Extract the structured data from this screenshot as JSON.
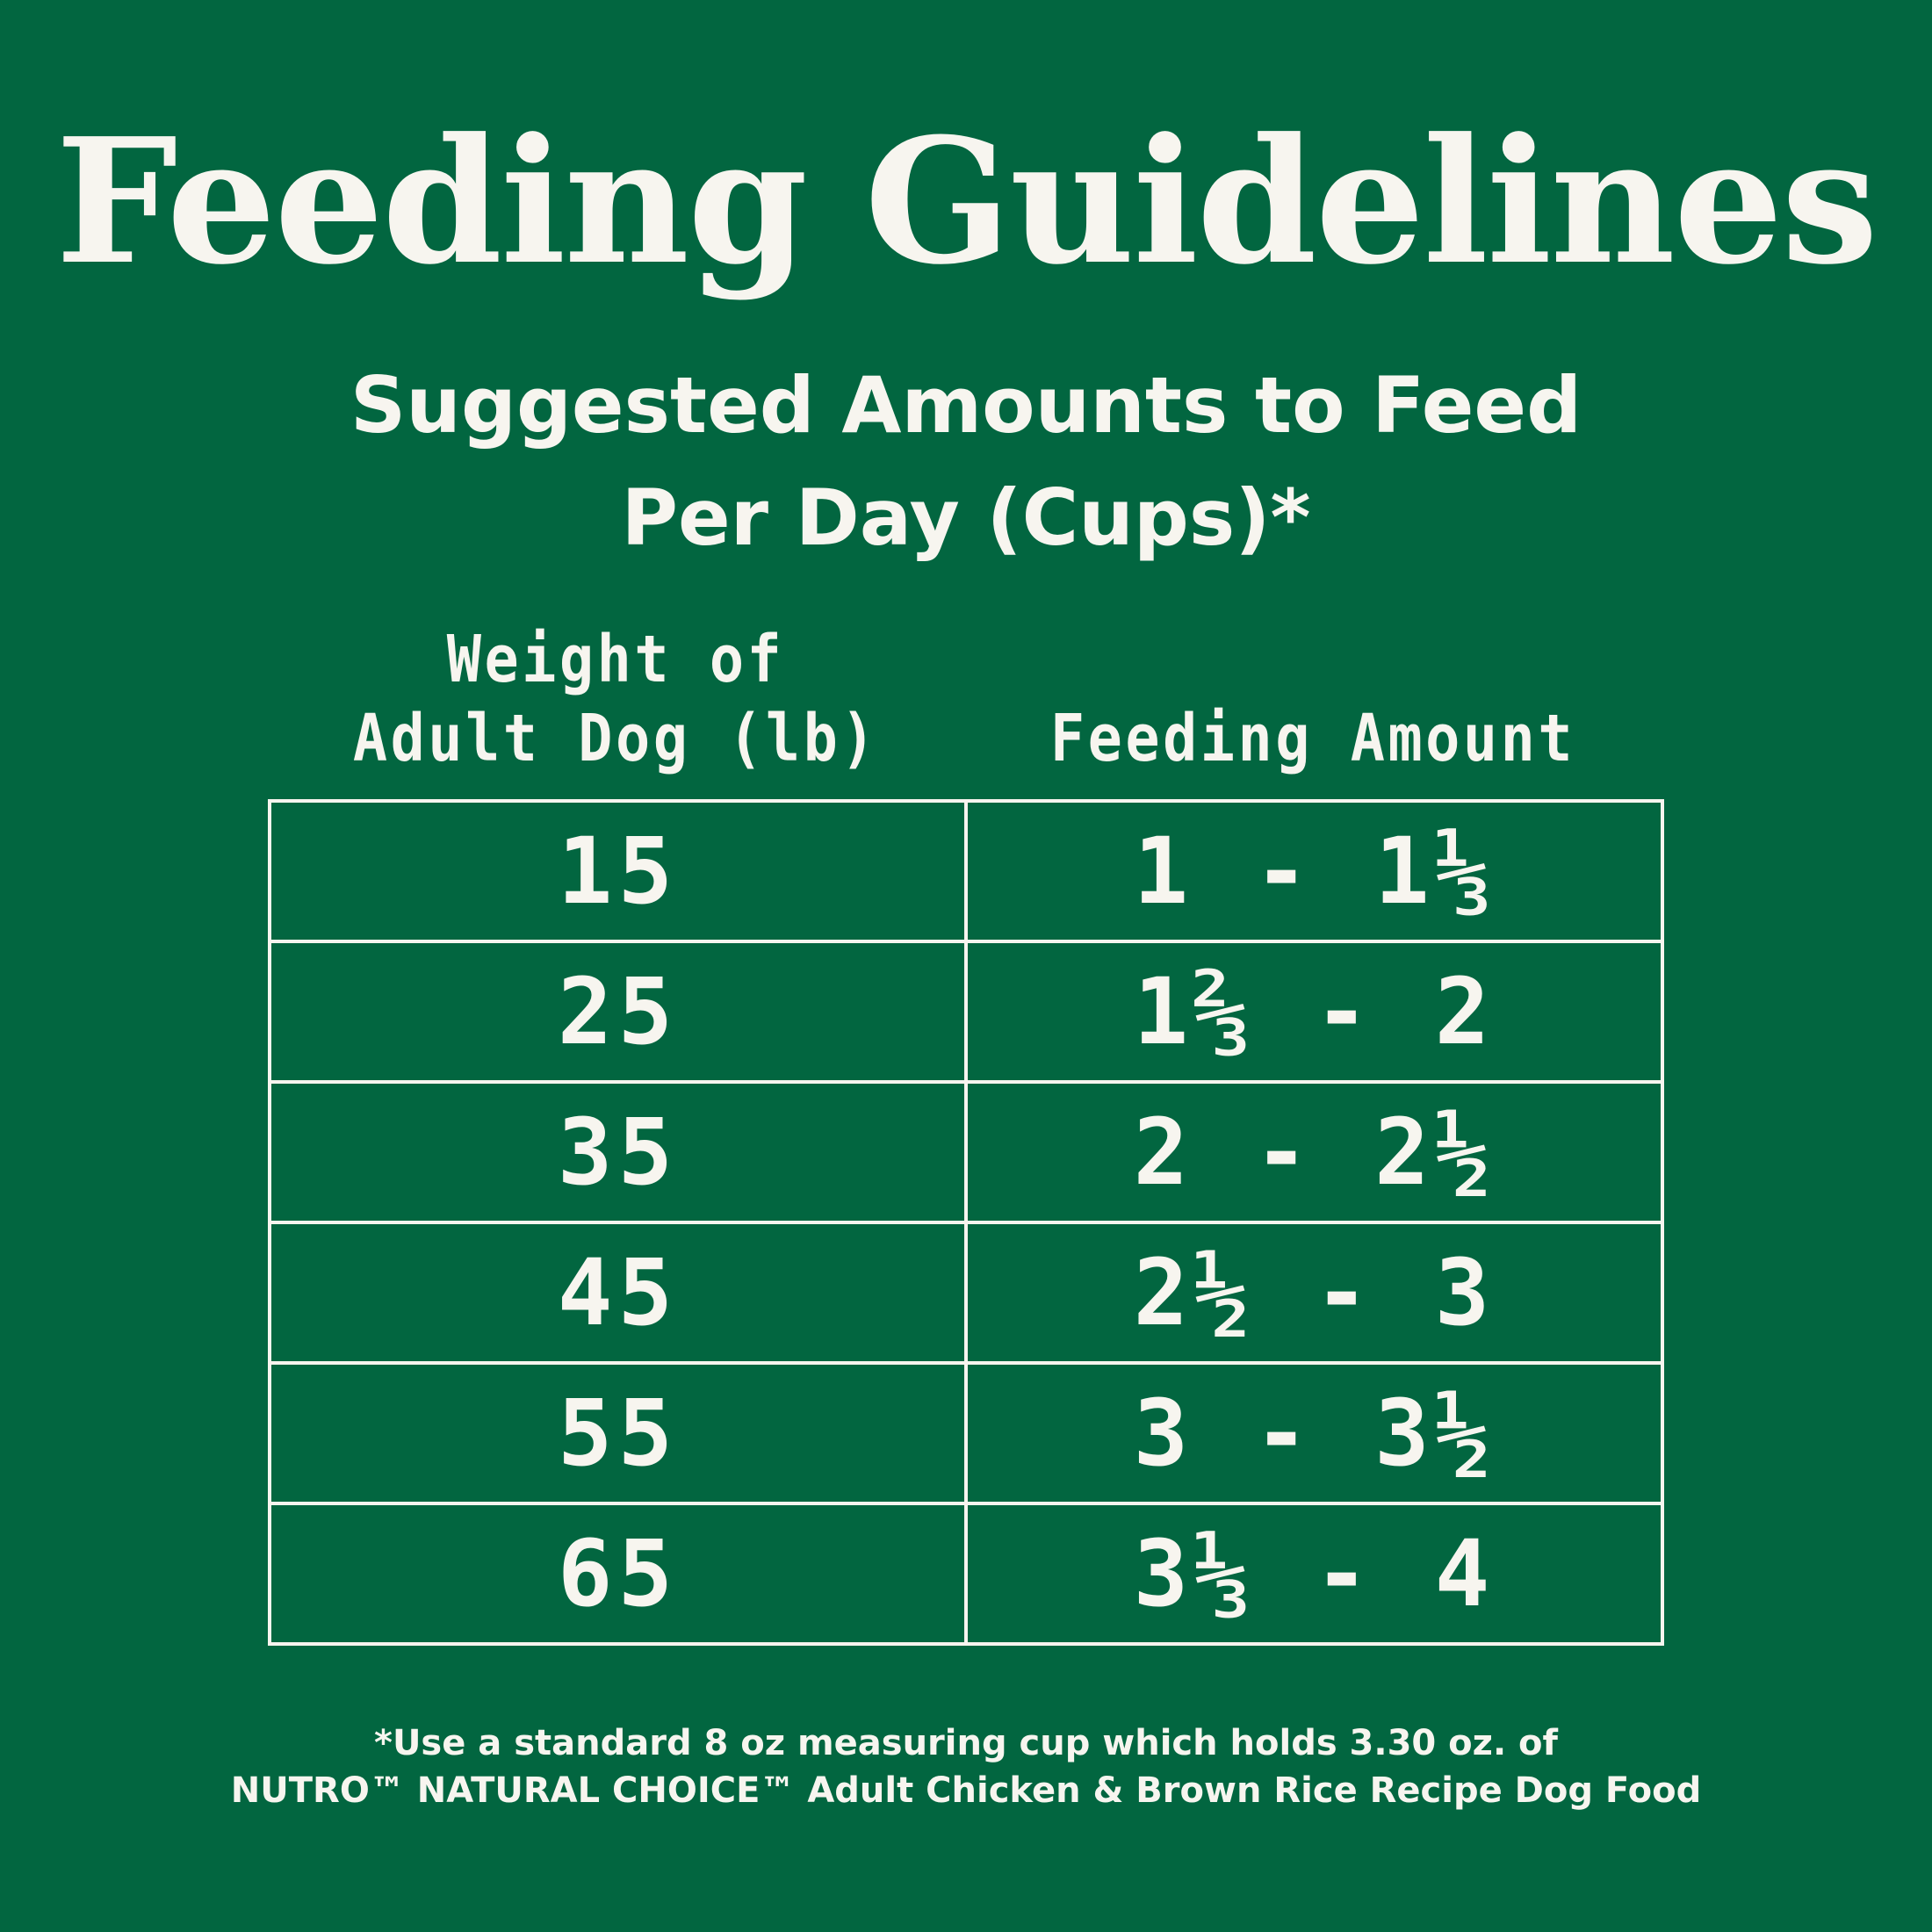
{
  "title": "Feeding Guidelines",
  "subtitle": {
    "line1": "Suggested Amounts to Feed",
    "line2": "Per Day (Cups)*"
  },
  "columns": {
    "weight_line1": "Weight of",
    "weight_line2": "Adult Dog (lb)",
    "amount": "Feeding Amount"
  },
  "rows": [
    {
      "weight": "15",
      "amount": "1 - 1⅓"
    },
    {
      "weight": "25",
      "amount": "1⅔ - 2"
    },
    {
      "weight": "35",
      "amount": "2 - 2½"
    },
    {
      "weight": "45",
      "amount": "2½ - 3"
    },
    {
      "weight": "55",
      "amount": "3 - 3½"
    },
    {
      "weight": "65",
      "amount": "3⅓ - 4"
    }
  ],
  "footnote": {
    "line1": "*Use a standard 8 oz measuring cup which holds 3.30 oz. of",
    "line2": "NUTRO™ NATURAL CHOICE™ Adult Chicken & Brown Rice Recipe Dog Food"
  },
  "colors": {
    "background": "#026640",
    "text": "#f7f5ef"
  }
}
